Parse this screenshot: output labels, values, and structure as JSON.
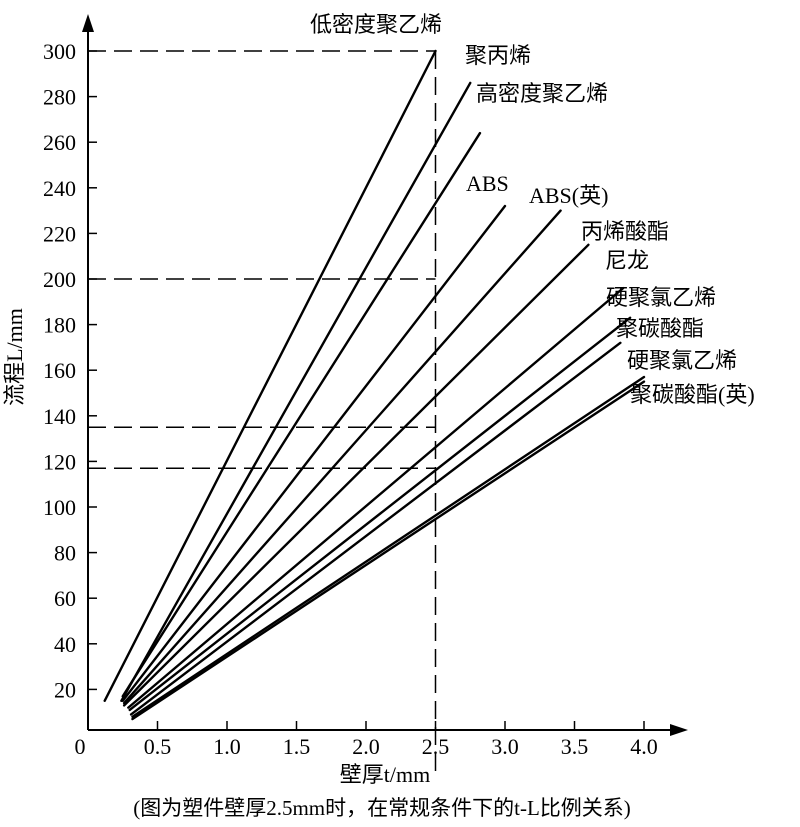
{
  "chart_data": {
    "type": "line",
    "xlabel": "壁厚t/mm",
    "ylabel": "流程L/mm",
    "caption": "(图为塑件壁厚2.5mm时，在常规条件下的t-L比例关系)",
    "xlim": [
      0,
      4.0
    ],
    "ylim": [
      0,
      300
    ],
    "x_ticks": [
      "0.5",
      "1.0",
      "1.5",
      "2.0",
      "2.5",
      "3.0",
      "3.5",
      "4.0"
    ],
    "x_origin_label": "0",
    "y_ticks": [
      "20",
      "40",
      "60",
      "80",
      "100",
      "120",
      "140",
      "160",
      "180",
      "200",
      "220",
      "240",
      "260",
      "280",
      "300"
    ],
    "reference_lines": [
      {
        "x": 2.5,
        "y": 300
      },
      {
        "x": 2.5,
        "y": 200
      },
      {
        "x": 2.5,
        "y": 135
      },
      {
        "x": 2.5,
        "y": 117
      }
    ],
    "series": [
      {
        "name": "低密度聚乙烯",
        "x": [
          0.12,
          2.5
        ],
        "y": [
          15,
          300
        ]
      },
      {
        "name": "聚丙烯",
        "x": [
          0.24,
          2.75
        ],
        "y": [
          15,
          286
        ]
      },
      {
        "name": "高密度聚乙烯",
        "x": [
          0.25,
          2.82
        ],
        "y": [
          17,
          264
        ]
      },
      {
        "name": "ABS",
        "x": [
          0.25,
          3.0
        ],
        "y": [
          15,
          232
        ]
      },
      {
        "name": "ABS(英)",
        "x": [
          0.26,
          3.4
        ],
        "y": [
          14,
          230
        ]
      },
      {
        "name": "丙烯酸酯",
        "x": [
          0.26,
          3.6
        ],
        "y": [
          13,
          215
        ]
      },
      {
        "name": "尼龙",
        "x": [
          0.29,
          3.85
        ],
        "y": [
          12,
          196
        ]
      },
      {
        "name": "硬聚氯乙烯",
        "x": [
          0.3,
          3.9
        ],
        "y": [
          11,
          183
        ]
      },
      {
        "name": "聚碳酸酯",
        "x": [
          0.31,
          3.83
        ],
        "y": [
          9,
          172
        ]
      },
      {
        "name": "硬聚氯乙烯",
        "x": [
          0.32,
          4.0
        ],
        "y": [
          8,
          157
        ]
      },
      {
        "name": "聚碳酸酯(英)",
        "x": [
          0.32,
          4.0
        ],
        "y": [
          7,
          155
        ]
      }
    ]
  }
}
